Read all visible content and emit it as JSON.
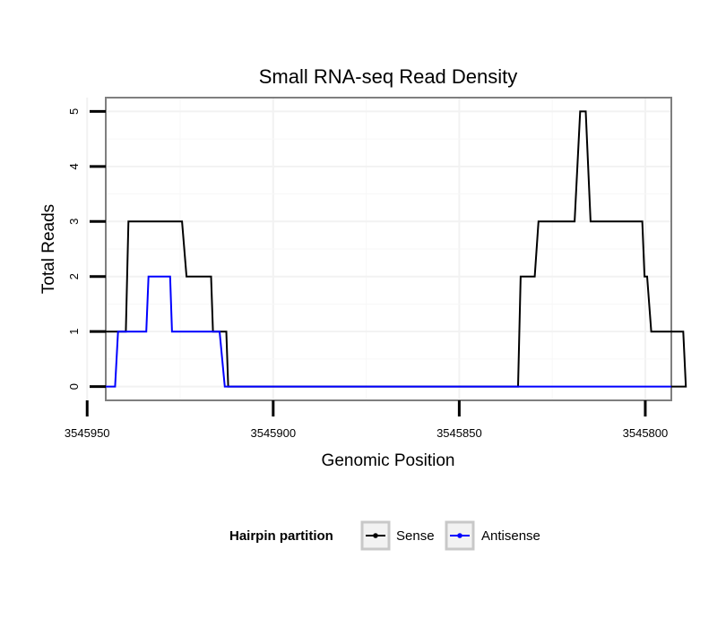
{
  "chart_data": {
    "type": "line",
    "title": "Small RNA-seq Read Density",
    "xlabel": "Genomic Position",
    "ylabel": "Total Reads",
    "xlim": [
      3545945,
      3545793
    ],
    "ylim": [
      -0.25,
      5.25
    ],
    "x_ticks": [
      3545950,
      3545900,
      3545850,
      3545800
    ],
    "x_tick_labels": [
      "3545950",
      "3545900",
      "3545850",
      "3545800"
    ],
    "y_ticks": [
      0,
      1,
      2,
      3,
      4,
      5
    ],
    "y_tick_labels": [
      "0",
      "1",
      "2",
      "3",
      "4",
      "5"
    ],
    "grid": true,
    "legend": {
      "title": "Hairpin partition",
      "position": "bottom"
    },
    "series": [
      {
        "name": "Sense",
        "color": "#000000",
        "points": [
          [
            3545945,
            1
          ],
          [
            3545939.6,
            1
          ],
          [
            3545938.9,
            3
          ],
          [
            3545924.5,
            3
          ],
          [
            3545923.3,
            2
          ],
          [
            3545916.7,
            2
          ],
          [
            3545916.2,
            1
          ],
          [
            3545912.6,
            1
          ],
          [
            3545912.1,
            0
          ],
          [
            3545834.2,
            0
          ],
          [
            3545833.5,
            2
          ],
          [
            3545829.7,
            2
          ],
          [
            3545828.7,
            3
          ],
          [
            3545819.0,
            3
          ],
          [
            3545817.5,
            5
          ],
          [
            3545816.0,
            5
          ],
          [
            3545814.7,
            3
          ],
          [
            3545800.8,
            3
          ],
          [
            3545800.2,
            2
          ],
          [
            3545799.5,
            2
          ],
          [
            3545798.4,
            1
          ],
          [
            3545789.8,
            1
          ],
          [
            3545789.1,
            0
          ],
          [
            3545793,
            0
          ]
        ]
      },
      {
        "name": "Antisense",
        "color": "#0000ff",
        "points": [
          [
            3545945,
            0
          ],
          [
            3545942.5,
            0
          ],
          [
            3545941.7,
            1
          ],
          [
            3545934.1,
            1
          ],
          [
            3545933.5,
            2
          ],
          [
            3545927.7,
            2
          ],
          [
            3545927.2,
            1
          ],
          [
            3545914.4,
            1
          ],
          [
            3545913.0,
            0
          ],
          [
            3545793,
            0
          ]
        ]
      }
    ]
  }
}
